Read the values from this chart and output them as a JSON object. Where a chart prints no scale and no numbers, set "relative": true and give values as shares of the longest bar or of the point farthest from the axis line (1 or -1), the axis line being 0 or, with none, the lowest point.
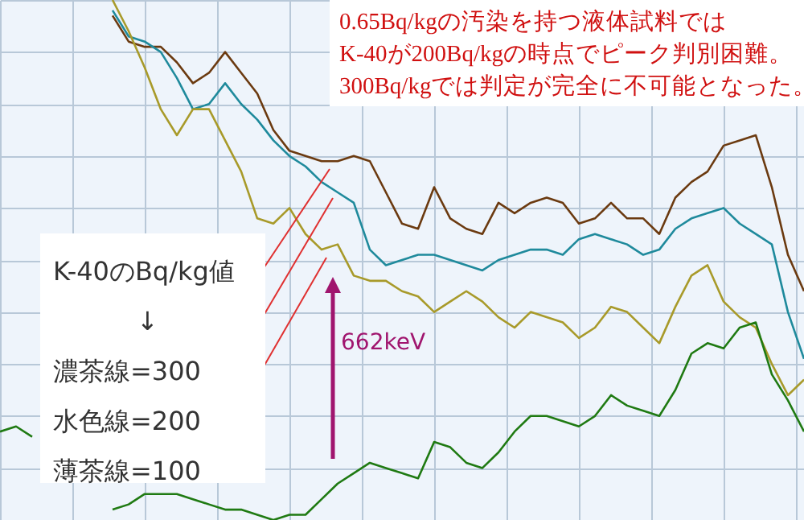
{
  "chart_data": {
    "type": "line",
    "relative": true,
    "grid": true,
    "line_style": "solid",
    "categories": [
      null,
      null,
      null,
      null,
      null,
      null,
      null,
      null,
      null,
      null,
      null,
      null,
      null,
      null,
      null,
      null,
      null,
      null,
      null,
      null,
      null,
      null,
      null,
      null,
      null,
      null,
      null,
      null,
      null,
      null,
      null,
      null,
      null,
      null,
      null,
      null,
      null,
      null,
      null,
      null,
      null,
      null,
      null,
      null,
      null,
      null,
      null,
      null,
      null,
      null,
      null
    ],
    "annotations": [
      "0.65Bq/kgの汚染を持つ液体試料では",
      "K-40が200Bq/kgの時点でピーク判別困難。",
      "300Bq/kgでは判定が完全に不可能となった。",
      "K-40のBq/kg値",
      "↓",
      "濃茶線=300",
      "水色線=200",
      "薄茶線=100",
      "662keV"
    ],
    "series": [
      {
        "color": "#6b3a10",
        "values": [
          null,
          null,
          null,
          null,
          null,
          null,
          null,
          0.97,
          0.92,
          0.91,
          0.91,
          0.88,
          0.84,
          0.86,
          0.9,
          0.86,
          0.82,
          0.75,
          0.71,
          0.7,
          0.69,
          0.69,
          0.7,
          0.69,
          0.63,
          0.57,
          0.56,
          0.64,
          0.58,
          0.56,
          0.55,
          0.61,
          0.59,
          0.61,
          0.62,
          0.61,
          0.57,
          0.58,
          0.61,
          0.58,
          0.58,
          0.55,
          0.62,
          0.65,
          0.67,
          0.72,
          0.73,
          0.74,
          0.64,
          0.51,
          0.44
        ]
      },
      {
        "color": "#1f8a9c",
        "values": [
          null,
          null,
          null,
          null,
          null,
          null,
          null,
          0.98,
          0.93,
          0.92,
          0.9,
          0.85,
          0.79,
          0.8,
          0.84,
          0.8,
          0.77,
          0.73,
          0.7,
          0.68,
          0.65,
          0.63,
          0.61,
          0.52,
          0.49,
          0.5,
          0.51,
          0.51,
          0.5,
          0.49,
          0.48,
          0.5,
          0.51,
          0.52,
          0.52,
          0.51,
          0.54,
          0.55,
          0.54,
          0.53,
          0.51,
          0.52,
          0.56,
          0.58,
          0.59,
          0.6,
          0.57,
          0.55,
          0.53,
          0.4,
          0.31
        ]
      },
      {
        "color": "#a89a2a",
        "values": [
          null,
          null,
          null,
          null,
          null,
          null,
          null,
          1.0,
          0.94,
          0.87,
          0.79,
          0.74,
          0.79,
          0.79,
          0.73,
          0.67,
          0.58,
          0.57,
          0.6,
          0.55,
          0.52,
          0.53,
          0.47,
          0.46,
          0.46,
          0.44,
          0.43,
          0.4,
          0.42,
          0.44,
          0.42,
          0.39,
          0.37,
          0.4,
          0.39,
          0.38,
          0.35,
          0.37,
          0.41,
          0.4,
          0.37,
          0.34,
          0.41,
          0.47,
          0.49,
          0.42,
          0.39,
          0.37,
          0.3,
          0.24,
          0.27
        ]
      },
      {
        "color": "#1f7a12",
        "values": [
          0.17,
          0.18,
          0.16,
          null,
          null,
          null,
          null,
          0.02,
          0.03,
          0.05,
          0.05,
          0.05,
          0.04,
          0.03,
          0.02,
          0.02,
          0.01,
          0.0,
          0.01,
          0.01,
          0.04,
          0.07,
          0.09,
          0.11,
          0.1,
          0.09,
          0.08,
          0.15,
          0.14,
          0.11,
          0.1,
          0.13,
          0.17,
          0.2,
          0.2,
          0.19,
          0.18,
          0.2,
          0.24,
          0.22,
          0.21,
          0.2,
          0.25,
          0.32,
          0.34,
          0.33,
          0.37,
          0.38,
          0.28,
          0.23,
          0.17
        ]
      }
    ]
  }
}
